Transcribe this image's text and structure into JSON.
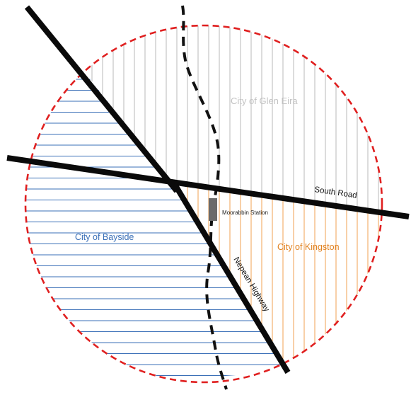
{
  "regions": {
    "glen_eira": {
      "label": "City of Glen Eira",
      "hatch_color": "#b8b8b8"
    },
    "bayside": {
      "label": "City of Bayside",
      "hatch_color": "#3a6fb7"
    },
    "kingston": {
      "label": "City of Kingston",
      "hatch_color": "#f0a050"
    }
  },
  "roads": {
    "south_road": {
      "label": "South Road"
    },
    "nepean_highway": {
      "label": "Nepean Highway"
    }
  },
  "station": {
    "label": "Moorabbin Station",
    "color": "#6b6b6b"
  },
  "boundary": {
    "color": "#e02020",
    "style": "dashed"
  },
  "railway": {
    "color": "#111111",
    "style": "dashed"
  }
}
